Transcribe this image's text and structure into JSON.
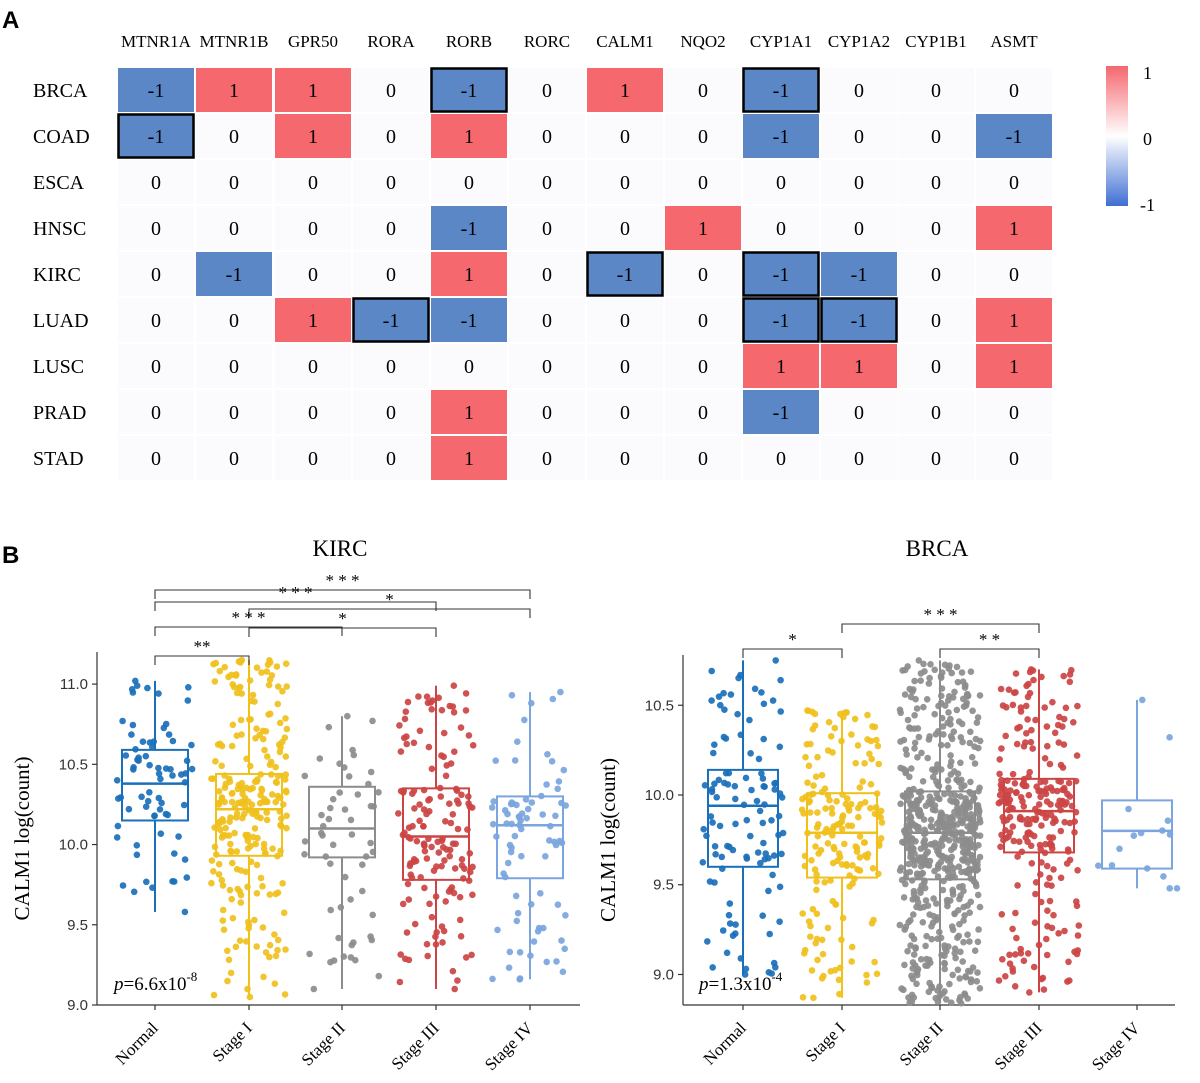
{
  "panel_a_label": "A",
  "panel_b_label": "B",
  "chart_data": [
    {
      "type": "heatmap",
      "columns": [
        "MTNR1A",
        "MTNR1B",
        "GPR50",
        "RORA",
        "RORB",
        "RORC",
        "CALM1",
        "NQO2",
        "CYP1A1",
        "CYP1A2",
        "CYP1B1",
        "ASMT"
      ],
      "rows": [
        "BRCA",
        "COAD",
        "ESCA",
        "HNSC",
        "KIRC",
        "LUAD",
        "LUSC",
        "PRAD",
        "STAD"
      ],
      "values": [
        [
          -1,
          1,
          1,
          0,
          -1,
          0,
          1,
          0,
          -1,
          0,
          0,
          0
        ],
        [
          -1,
          0,
          1,
          0,
          1,
          0,
          0,
          0,
          -1,
          0,
          0,
          -1
        ],
        [
          0,
          0,
          0,
          0,
          0,
          0,
          0,
          0,
          0,
          0,
          0,
          0
        ],
        [
          0,
          0,
          0,
          0,
          -1,
          0,
          0,
          1,
          0,
          0,
          0,
          1
        ],
        [
          0,
          -1,
          0,
          0,
          1,
          0,
          -1,
          0,
          -1,
          -1,
          0,
          0
        ],
        [
          0,
          0,
          1,
          -1,
          -1,
          0,
          0,
          0,
          -1,
          -1,
          0,
          1
        ],
        [
          0,
          0,
          0,
          0,
          0,
          0,
          0,
          0,
          1,
          1,
          0,
          1
        ],
        [
          0,
          0,
          0,
          0,
          1,
          0,
          0,
          0,
          -1,
          0,
          0,
          0
        ],
        [
          0,
          0,
          0,
          0,
          1,
          0,
          0,
          0,
          0,
          0,
          0,
          0
        ]
      ],
      "highlighted_cells": [
        [
          0,
          4
        ],
        [
          0,
          8
        ],
        [
          1,
          0
        ],
        [
          4,
          6
        ],
        [
          4,
          8
        ],
        [
          5,
          3
        ],
        [
          5,
          8
        ],
        [
          5,
          9
        ]
      ],
      "legend": {
        "max_label": "1",
        "mid_label": "0",
        "min_label": "-1"
      },
      "colors": {
        "positive": "#f4686e",
        "zero": "#fbfbfe",
        "negative": "#5b87c7"
      }
    },
    {
      "type": "box",
      "title": "KIRC",
      "ylabel": "CALM1   log(count)",
      "categories": [
        "Normal",
        "Stage I",
        "Stage II",
        "Stage III",
        "Stage IV"
      ],
      "ylim": [
        9.0,
        11.2
      ],
      "yticks": [
        9.0,
        9.5,
        10.0,
        10.5,
        11.0
      ],
      "ytick_labels": [
        "9.0",
        "9.5",
        "10.0",
        "10.5",
        "11.0"
      ],
      "colors": [
        "#1a6fba",
        "#f0c01c",
        "#8c8c8c",
        "#cc4444",
        "#7aa5de"
      ],
      "boxes": [
        {
          "min": 9.58,
          "q1": 10.15,
          "median": 10.38,
          "q3": 10.59,
          "max": 11.02,
          "n": 72
        },
        {
          "min": 9.05,
          "q1": 9.93,
          "median": 10.22,
          "q3": 10.44,
          "max": 11.15,
          "n": 250
        },
        {
          "min": 9.1,
          "q1": 9.92,
          "median": 10.1,
          "q3": 10.36,
          "max": 10.8,
          "n": 55
        },
        {
          "min": 9.1,
          "q1": 9.78,
          "median": 10.05,
          "q3": 10.35,
          "max": 10.99,
          "n": 150
        },
        {
          "min": 9.16,
          "q1": 9.79,
          "median": 10.12,
          "q3": 10.3,
          "max": 10.95,
          "n": 80
        }
      ],
      "significance": [
        {
          "from": "Normal",
          "to": "Stage I",
          "label": "**"
        },
        {
          "from": "Stage I",
          "to": "Stage III",
          "label": "*"
        },
        {
          "from": "Stage I",
          "to": "Stage IV",
          "label": "*"
        },
        {
          "from": "Normal",
          "to": "Stage II",
          "label": "* * *"
        },
        {
          "from": "Normal",
          "to": "Stage III",
          "label": "* * *"
        },
        {
          "from": "Normal",
          "to": "Stage IV",
          "label": "* * *"
        }
      ],
      "pvalue": {
        "p": "p",
        "eq": "=6.6x10",
        "exp": "-8"
      }
    },
    {
      "type": "box",
      "title": "BRCA",
      "ylabel": "CALM1   log(count)",
      "categories": [
        "Normal",
        "Stage I",
        "Stage II",
        "Stage III",
        "Stage IV"
      ],
      "ylim": [
        8.83,
        10.78
      ],
      "yticks": [
        9.0,
        9.5,
        10.0,
        10.5
      ],
      "ytick_labels": [
        "9.0",
        "9.5",
        "10.0",
        "10.5"
      ],
      "colors": [
        "#1a6fba",
        "#f0c01c",
        "#8c8c8c",
        "#cc4444",
        "#7aa5de"
      ],
      "boxes": [
        {
          "min": 9.0,
          "q1": 9.6,
          "median": 9.94,
          "q3": 10.14,
          "max": 10.75,
          "n": 110
        },
        {
          "min": 8.87,
          "q1": 9.54,
          "median": 9.79,
          "q3": 10.01,
          "max": 10.47,
          "n": 180
        },
        {
          "min": 8.84,
          "q1": 9.53,
          "median": 9.79,
          "q3": 10.02,
          "max": 10.75,
          "n": 600
        },
        {
          "min": 8.9,
          "q1": 9.68,
          "median": 9.91,
          "q3": 10.09,
          "max": 10.7,
          "n": 250
        },
        {
          "min": 9.48,
          "q1": 9.59,
          "median": 9.8,
          "q3": 9.97,
          "max": 10.53,
          "n": 15
        }
      ],
      "significance": [
        {
          "from": "Normal",
          "to": "Stage I",
          "label": "*"
        },
        {
          "from": "Stage II",
          "to": "Stage III",
          "label": "* *"
        },
        {
          "from": "Stage I",
          "to": "Stage III",
          "label": "* * *"
        }
      ],
      "pvalue": {
        "p": "p",
        "eq": "=1.3x10",
        "exp": "-4"
      }
    }
  ]
}
